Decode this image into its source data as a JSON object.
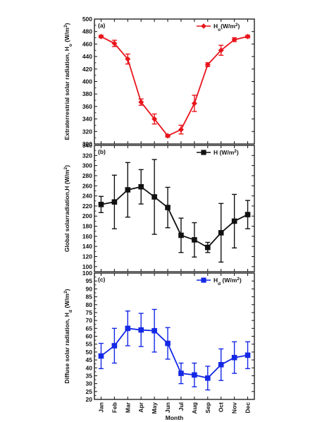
{
  "chart_data": [
    {
      "type": "line",
      "panel_label": "(a)",
      "legend": {
        "name_main": "H",
        "name_sub": "o",
        "name_unit": "(W/m",
        "name_sup": "2",
        "name_close": ")",
        "placement": "top-right"
      },
      "ylabel": {
        "main": "Extraterrestrial solar radiation, H",
        "sub": "o",
        "unit": " (W/m",
        "sup": "2",
        "close": ")"
      },
      "ylim": [
        300,
        500
      ],
      "yticks": [
        "300",
        "320",
        "340",
        "360",
        "380",
        "400",
        "420",
        "440",
        "460",
        "480",
        "500"
      ],
      "color": "#e8141b",
      "marker": "diamond",
      "categories": [
        "Jan",
        "Feb",
        "Mar",
        "Apr",
        "May",
        "Jun",
        "Jul",
        "Aug",
        "Sep",
        "Oct",
        "Nov",
        "Dec"
      ],
      "values": [
        472,
        461,
        436,
        367,
        340,
        313,
        323,
        365,
        427,
        450,
        467,
        472
      ],
      "errors": [
        2,
        5,
        8,
        5,
        8,
        2,
        7,
        13,
        3,
        8,
        3,
        2
      ]
    },
    {
      "type": "line",
      "panel_label": "(b)",
      "legend": {
        "name_main": "H",
        "name_sub": "",
        "name_unit": " (W/m",
        "name_sup": "2",
        "name_close": ")",
        "placement": "top-right"
      },
      "ylabel": {
        "main": "Global solarradiation,H",
        "sub": "",
        "unit": " (W/m",
        "sup": "2",
        "close": ")"
      },
      "ylim": [
        90,
        340
      ],
      "yticks": [
        "100",
        "120",
        "140",
        "160",
        "180",
        "200",
        "220",
        "240",
        "260",
        "280",
        "300",
        "320",
        "340"
      ],
      "color": "#111111",
      "marker": "square",
      "categories": [
        "Jan",
        "Feb",
        "Mar",
        "Apr",
        "May",
        "Jun",
        "Jul",
        "Aug",
        "Sep",
        "Oct",
        "Nov",
        "Dec"
      ],
      "values": [
        223,
        228,
        252,
        258,
        238,
        217,
        162,
        153,
        138,
        167,
        190,
        203
      ],
      "errors": [
        16,
        53,
        54,
        34,
        74,
        40,
        34,
        34,
        10,
        58,
        53,
        28
      ]
    },
    {
      "type": "line",
      "panel_label": "(c)",
      "legend": {
        "name_main": "H",
        "name_sub": "d",
        "name_unit": " (W/m",
        "name_sup": "2",
        "name_close": ")",
        "placement": "top-right"
      },
      "ylabel": {
        "main": "Diffuse solar radiation, H",
        "sub": "d",
        "unit": " (W/m",
        "sup": "2",
        "close": ")"
      },
      "ylim": [
        20,
        100
      ],
      "yticks": [
        "20",
        "25",
        "30",
        "35",
        "40",
        "45",
        "50",
        "55",
        "60",
        "65",
        "70",
        "75",
        "80",
        "85",
        "90",
        "95",
        "100"
      ],
      "color": "#1428e6",
      "marker": "square",
      "categories": [
        "Jan",
        "Feb",
        "Mar",
        "Apr",
        "May",
        "Jun",
        "Jul",
        "Aug",
        "Sep",
        "Oct",
        "Nov",
        "Dec"
      ],
      "values": [
        47.5,
        54,
        65,
        64,
        63.5,
        55.5,
        36.5,
        35.5,
        33.5,
        42,
        46.5,
        48
      ],
      "errors": [
        8,
        11,
        11,
        10.5,
        13.5,
        10,
        6.5,
        7.5,
        7.5,
        10,
        10,
        8.5
      ]
    }
  ],
  "xlabel": "Month"
}
